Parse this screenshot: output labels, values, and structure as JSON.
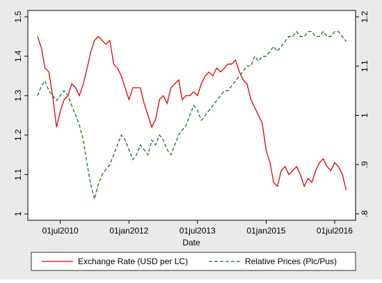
{
  "chart_data": {
    "type": "line",
    "xlabel": "Date",
    "x": [
      "2010-01-01",
      "2010-02-01",
      "2010-03-01",
      "2010-04-01",
      "2010-05-01",
      "2010-06-01",
      "2010-07-01",
      "2010-08-01",
      "2010-09-01",
      "2010-10-01",
      "2010-11-01",
      "2010-12-01",
      "2011-01-01",
      "2011-02-01",
      "2011-03-01",
      "2011-04-01",
      "2011-05-01",
      "2011-06-01",
      "2011-07-01",
      "2011-08-01",
      "2011-09-01",
      "2011-10-01",
      "2011-11-01",
      "2011-12-01",
      "2012-01-01",
      "2012-02-01",
      "2012-03-01",
      "2012-04-01",
      "2012-05-01",
      "2012-06-01",
      "2012-07-01",
      "2012-08-01",
      "2012-09-01",
      "2012-10-01",
      "2012-11-01",
      "2012-12-01",
      "2013-01-01",
      "2013-02-01",
      "2013-03-01",
      "2013-04-01",
      "2013-05-01",
      "2013-06-01",
      "2013-07-01",
      "2013-08-01",
      "2013-09-01",
      "2013-10-01",
      "2013-11-01",
      "2013-12-01",
      "2014-01-01",
      "2014-02-01",
      "2014-03-01",
      "2014-04-01",
      "2014-05-01",
      "2014-06-01",
      "2014-07-01",
      "2014-08-01",
      "2014-09-01",
      "2014-10-01",
      "2014-11-01",
      "2014-12-01",
      "2015-01-01",
      "2015-02-01",
      "2015-03-01",
      "2015-04-01",
      "2015-05-01",
      "2015-06-01",
      "2015-07-01",
      "2015-08-01",
      "2015-09-01",
      "2015-10-01",
      "2015-11-01",
      "2015-12-01",
      "2016-01-01",
      "2016-02-01",
      "2016-03-01",
      "2016-04-01",
      "2016-05-01",
      "2016-06-01",
      "2016-07-01",
      "2016-08-01",
      "2016-09-01",
      "2016-10-01"
    ],
    "xlim": [
      "2009-10-15",
      "2016-12-15"
    ],
    "xticks": [
      {
        "value": "2010-07-01",
        "label": "01jul2010"
      },
      {
        "value": "2012-01-01",
        "label": "01jan2012"
      },
      {
        "value": "2013-07-01",
        "label": "01jul2013"
      },
      {
        "value": "2015-01-01",
        "label": "01jan2015"
      },
      {
        "value": "2016-07-01",
        "label": "01jul2016"
      }
    ],
    "ylim": [
      0.984,
      1.516
    ],
    "yticks": [
      1,
      1.1,
      1.2,
      1.3,
      1.4,
      1.5
    ],
    "y2lim": [
      0.787,
      1.213
    ],
    "y2ticks": [
      {
        "value": 0.8,
        "label": ".8"
      },
      {
        "value": 0.9,
        "label": ".9"
      },
      1,
      1.1,
      1.2
    ],
    "series": [
      {
        "name": "Exchange Rate (USD per LC)",
        "color": "#e00000",
        "dash": false,
        "values": [
          1.45,
          1.42,
          1.37,
          1.36,
          1.3,
          1.22,
          1.26,
          1.29,
          1.3,
          1.33,
          1.32,
          1.3,
          1.33,
          1.37,
          1.41,
          1.44,
          1.45,
          1.44,
          1.43,
          1.44,
          1.38,
          1.37,
          1.35,
          1.32,
          1.29,
          1.32,
          1.32,
          1.32,
          1.28,
          1.25,
          1.22,
          1.24,
          1.29,
          1.3,
          1.28,
          1.32,
          1.33,
          1.34,
          1.29,
          1.3,
          1.3,
          1.31,
          1.3,
          1.33,
          1.35,
          1.36,
          1.35,
          1.37,
          1.36,
          1.37,
          1.38,
          1.38,
          1.39,
          1.36,
          1.34,
          1.33,
          1.29,
          1.27,
          1.25,
          1.23,
          1.16,
          1.13,
          1.08,
          1.07,
          1.11,
          1.12,
          1.1,
          1.11,
          1.12,
          1.1,
          1.07,
          1.09,
          1.08,
          1.11,
          1.13,
          1.14,
          1.12,
          1.11,
          1.13,
          1.12,
          1.1,
          1.06
        ]
      },
      {
        "name": "Relative Prices (Plc/Pus)",
        "color": "#1a6e1a",
        "dash": true,
        "axis": "y2",
        "values": [
          1.04,
          1.06,
          1.07,
          1.05,
          1.04,
          1.03,
          1.04,
          1.05,
          1.04,
          1.02,
          1.0,
          0.98,
          0.95,
          0.9,
          0.86,
          0.83,
          0.86,
          0.88,
          0.89,
          0.9,
          0.92,
          0.94,
          0.96,
          0.95,
          0.93,
          0.91,
          0.92,
          0.94,
          0.93,
          0.92,
          0.95,
          0.94,
          0.96,
          0.95,
          0.93,
          0.92,
          0.94,
          0.96,
          0.97,
          0.98,
          1.0,
          1.02,
          1.01,
          0.99,
          1.0,
          1.01,
          1.02,
          1.03,
          1.04,
          1.05,
          1.05,
          1.06,
          1.07,
          1.08,
          1.09,
          1.1,
          1.1,
          1.12,
          1.11,
          1.12,
          1.12,
          1.13,
          1.14,
          1.13,
          1.14,
          1.15,
          1.16,
          1.16,
          1.17,
          1.16,
          1.16,
          1.17,
          1.17,
          1.16,
          1.16,
          1.17,
          1.16,
          1.16,
          1.17,
          1.17,
          1.16,
          1.15
        ]
      }
    ]
  }
}
